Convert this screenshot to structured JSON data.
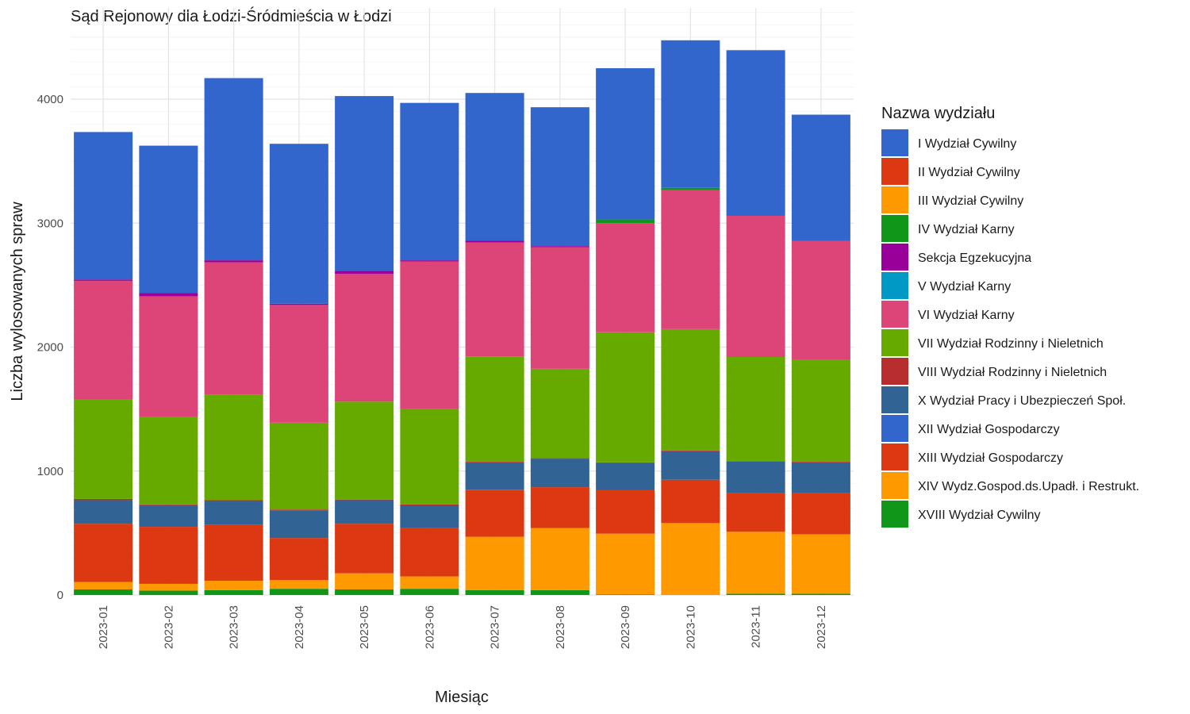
{
  "chart_data": {
    "type": "bar",
    "stacked": true,
    "title": "Sąd Rejonowy dla Łodzi-Śródmieścia w Łodzi",
    "xlabel": "Miesiąc",
    "ylabel": "Liczba wylosowanych spraw",
    "ylim": [
      0,
      4700
    ],
    "yticks": [
      0,
      1000,
      2000,
      3000,
      4000
    ],
    "grid": true,
    "legend_position": "right",
    "legend_title": "Nazwa wydziału",
    "categories": [
      "2023-01",
      "2023-02",
      "2023-03",
      "2023-04",
      "2023-05",
      "2023-06",
      "2023-07",
      "2023-08",
      "2023-09",
      "2023-10",
      "2023-11",
      "2023-12"
    ],
    "series": [
      {
        "name": "I Wydział Cywilny",
        "color": "#3366cc",
        "values": [
          1190,
          1190,
          1470,
          1290,
          1410,
          1270,
          1190,
          1120,
          1220,
          1190,
          1330,
          1020
        ]
      },
      {
        "name": "II Wydział Cywilny",
        "color": "#dc3912",
        "values": [
          0,
          0,
          0,
          0,
          0,
          0,
          0,
          0,
          0,
          0,
          0,
          0
        ]
      },
      {
        "name": "III Wydział Cywilny",
        "color": "#ff9900",
        "values": [
          0,
          0,
          0,
          0,
          0,
          0,
          0,
          0,
          0,
          0,
          0,
          0
        ]
      },
      {
        "name": "IV Wydział Karny",
        "color": "#109618",
        "values": [
          0,
          0,
          0,
          0,
          0,
          0,
          0,
          0,
          30,
          20,
          0,
          0
        ]
      },
      {
        "name": "Sekcja Egzekucyjna",
        "color": "#990099",
        "values": [
          10,
          25,
          15,
          10,
          25,
          10,
          15,
          10,
          0,
          0,
          5,
          0
        ]
      },
      {
        "name": "V Wydział Karny",
        "color": "#0099c6",
        "values": [
          0,
          0,
          0,
          0,
          0,
          0,
          0,
          0,
          0,
          0,
          0,
          0
        ]
      },
      {
        "name": "VI Wydział Karny",
        "color": "#dd4477",
        "values": [
          960,
          970,
          1070,
          950,
          1030,
          1190,
          920,
          980,
          880,
          1120,
          1140,
          960
        ]
      },
      {
        "name": "VII Wydział Rodzinny i Nieletnich",
        "color": "#66aa00",
        "values": [
          800,
          710,
          850,
          700,
          790,
          770,
          850,
          720,
          1050,
          980,
          840,
          820
        ]
      },
      {
        "name": "VIII Wydział Rodzinny i Nieletnich",
        "color": "#b82e2e",
        "values": [
          10,
          5,
          10,
          10,
          5,
          10,
          5,
          5,
          5,
          5,
          0,
          5
        ]
      },
      {
        "name": "X Wydział Pracy i Ubezpieczeń Społ.",
        "color": "#316395",
        "values": [
          190,
          175,
          190,
          220,
          190,
          180,
          220,
          230,
          220,
          230,
          260,
          250
        ]
      },
      {
        "name": "XII Wydział Gospodarczy",
        "color": "#3366cc",
        "values": [
          0,
          0,
          0,
          0,
          0,
          0,
          0,
          0,
          0,
          0,
          0,
          0
        ]
      },
      {
        "name": "XIII Wydział Gospodarczy",
        "color": "#dc3912",
        "values": [
          470,
          460,
          450,
          340,
          400,
          390,
          380,
          330,
          350,
          350,
          310,
          330
        ]
      },
      {
        "name": "XIV Wydz.Gospod.ds.Upadł. i Restrukt.",
        "color": "#ff9900",
        "values": [
          60,
          55,
          75,
          70,
          130,
          100,
          430,
          500,
          490,
          580,
          500,
          480
        ]
      },
      {
        "name": "XVIII Wydział Cywilny",
        "color": "#109618",
        "values": [
          45,
          35,
          40,
          50,
          45,
          50,
          40,
          40,
          5,
          0,
          10,
          10
        ]
      }
    ],
    "stack_order_bottom_to_top": [
      13,
      12,
      11,
      10,
      9,
      8,
      7,
      6,
      5,
      4,
      3,
      2,
      1,
      0
    ]
  }
}
